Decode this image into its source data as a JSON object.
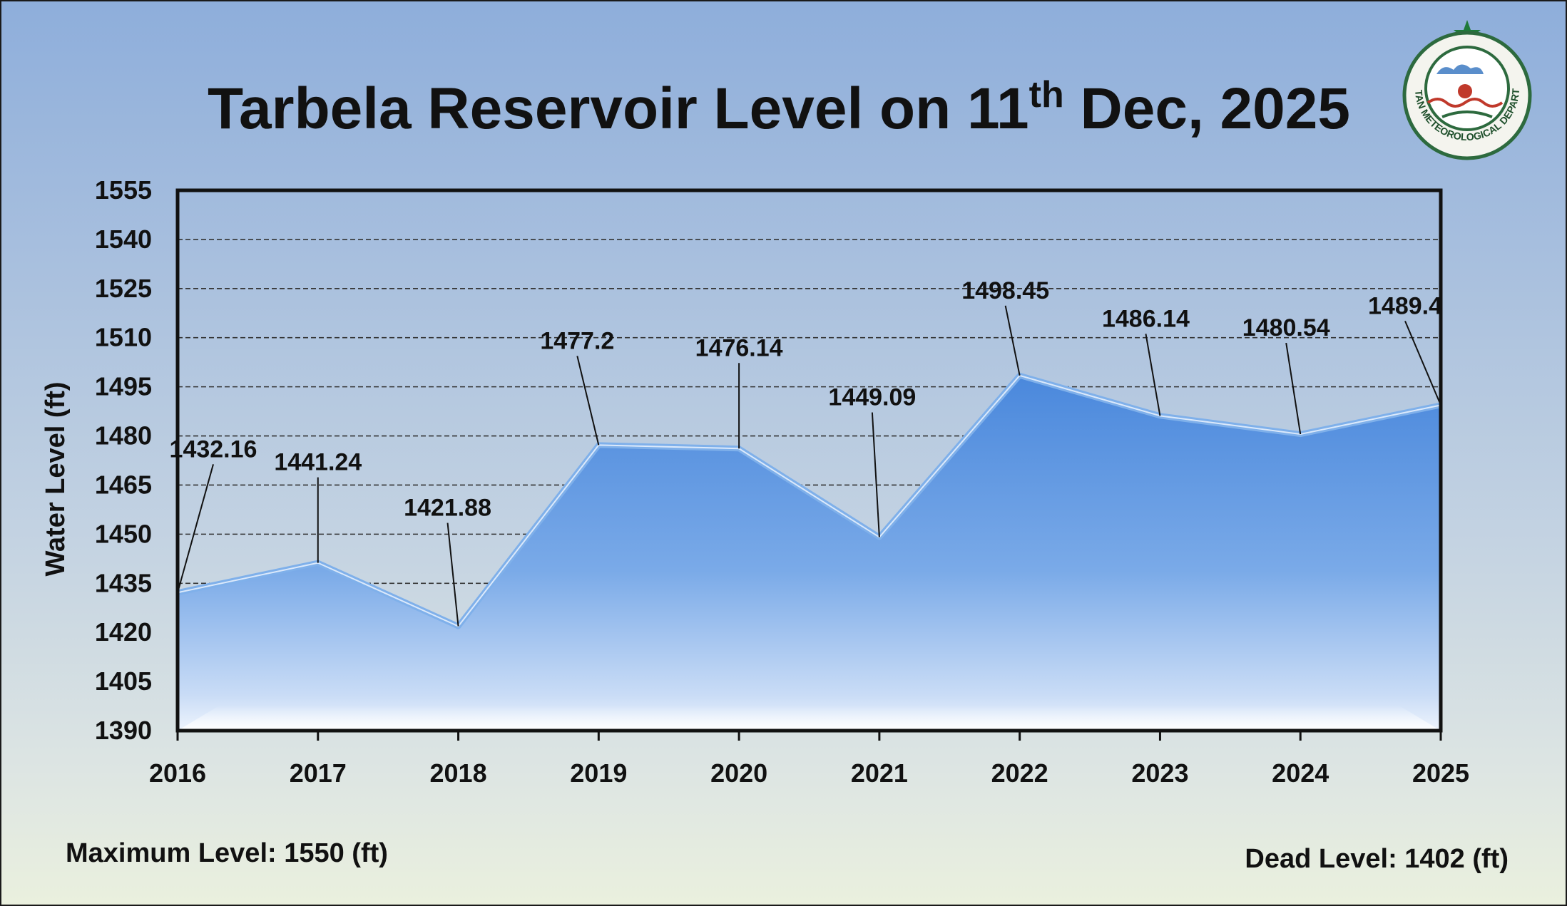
{
  "chart_data": {
    "type": "area",
    "title": "Tarbela Reservoir Level on 11",
    "title_superscript": "th",
    "title_suffix": " Dec, 2025",
    "ylabel": "Water Level (ft)",
    "xlabel": "",
    "categories": [
      "2016",
      "2017",
      "2018",
      "2019",
      "2020",
      "2021",
      "2022",
      "2023",
      "2024",
      "2025"
    ],
    "values": [
      1432.16,
      1441.24,
      1421.88,
      1477.2,
      1476.14,
      1449.09,
      1498.45,
      1486.14,
      1480.54,
      1489.4
    ],
    "data_labels": [
      "1432.16",
      "1441.24",
      "1421.88",
      "1477.2",
      "1476.14",
      "1449.09",
      "1498.45",
      "1486.14",
      "1480.54",
      "1489.4"
    ],
    "ylim": [
      1390,
      1555
    ],
    "yticks": [
      "1390",
      "1405",
      "1420",
      "1435",
      "1450",
      "1465",
      "1480",
      "1495",
      "1510",
      "1525",
      "1540",
      "1555"
    ],
    "grid": "horizontal dashed",
    "colors": {
      "fill_top": "#4f8de0",
      "fill_bottom": "#d8e7fb",
      "line": "#7fb0ea"
    }
  },
  "notes": {
    "max_level": "Maximum Level: 1550 (ft)",
    "dead_level": "Dead Level: 1402 (ft)"
  },
  "logo": {
    "text": "PAKISTAN METEOROLOGICAL DEPARTMENT"
  }
}
